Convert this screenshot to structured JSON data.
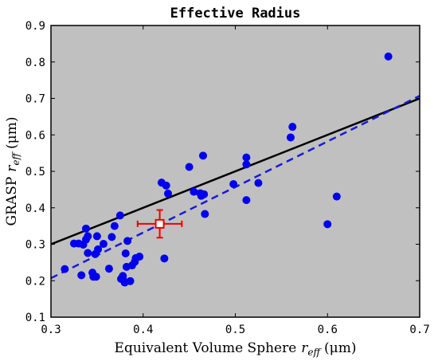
{
  "chart_data": {
    "type": "scatter",
    "title": "Effective Radius",
    "xlabel": "Equivalent Volume Sphere",
    "ylabel": "GRASP",
    "label_symbol": "r",
    "label_subscript": "eff",
    "unit": "(μm)",
    "xlim": [
      0.3,
      0.7
    ],
    "ylim": [
      0.1,
      0.9
    ],
    "xticks": [
      "0.3",
      "0.4",
      "0.5",
      "0.6",
      "0.7"
    ],
    "yticks": [
      "0.1",
      "0.2",
      "0.3",
      "0.4",
      "0.5",
      "0.6",
      "0.7",
      "0.8",
      "0.9"
    ],
    "grid": false,
    "colors": {
      "background": "#c0c0c0",
      "points": "#0000ee",
      "one_to_one_line": "#000000",
      "fit_line": "#1a1adc",
      "mean_marker": "#ee0000"
    },
    "series": [
      {
        "points": [
          [
            0.315,
            0.232
          ],
          [
            0.325,
            0.302
          ],
          [
            0.33,
            0.302
          ],
          [
            0.333,
            0.215
          ],
          [
            0.335,
            0.299
          ],
          [
            0.338,
            0.343
          ],
          [
            0.338,
            0.313
          ],
          [
            0.34,
            0.322
          ],
          [
            0.34,
            0.276
          ],
          [
            0.345,
            0.222
          ],
          [
            0.346,
            0.211
          ],
          [
            0.348,
            0.273
          ],
          [
            0.349,
            0.211
          ],
          [
            0.35,
            0.322
          ],
          [
            0.351,
            0.286
          ],
          [
            0.357,
            0.301
          ],
          [
            0.363,
            0.233
          ],
          [
            0.366,
            0.32
          ],
          [
            0.369,
            0.35
          ],
          [
            0.375,
            0.379
          ],
          [
            0.376,
            0.205
          ],
          [
            0.378,
            0.213
          ],
          [
            0.378,
            0.204
          ],
          [
            0.38,
            0.195
          ],
          [
            0.381,
            0.275
          ],
          [
            0.382,
            0.238
          ],
          [
            0.383,
            0.309
          ],
          [
            0.386,
            0.199
          ],
          [
            0.388,
            0.242
          ],
          [
            0.391,
            0.252
          ],
          [
            0.392,
            0.262
          ],
          [
            0.396,
            0.266
          ],
          [
            0.42,
            0.469
          ],
          [
            0.423,
            0.261
          ],
          [
            0.425,
            0.461
          ],
          [
            0.427,
            0.439
          ],
          [
            0.45,
            0.512
          ],
          [
            0.455,
            0.444
          ],
          [
            0.462,
            0.44
          ],
          [
            0.463,
            0.433
          ],
          [
            0.465,
            0.543
          ],
          [
            0.466,
            0.437
          ],
          [
            0.467,
            0.383
          ],
          [
            0.498,
            0.465
          ],
          [
            0.512,
            0.538
          ],
          [
            0.512,
            0.519
          ],
          [
            0.512,
            0.421
          ],
          [
            0.525,
            0.468
          ],
          [
            0.56,
            0.593
          ],
          [
            0.562,
            0.622
          ],
          [
            0.6,
            0.355
          ],
          [
            0.61,
            0.431
          ],
          [
            0.666,
            0.815
          ]
        ]
      }
    ],
    "one_to_one_line": [
      [
        0.3,
        0.3
      ],
      [
        0.7,
        0.7
      ]
    ],
    "fit_line": [
      [
        0.3,
        0.207
      ],
      [
        0.7,
        0.707
      ]
    ],
    "mean_marker": {
      "x": 0.418,
      "y": 0.356,
      "xerr": 0.024,
      "yerr": 0.038
    }
  }
}
